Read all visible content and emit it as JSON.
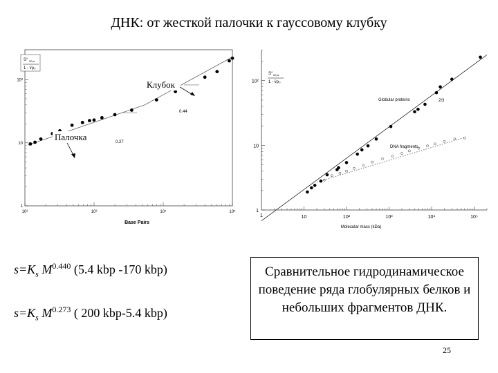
{
  "slide": {
    "title": "ДНК: от жесткой палочки к гауссовому клубку",
    "formula1": {
      "prefix": "s=K",
      "sub": "s",
      "mid": " M",
      "exp": "0.440",
      "range": " (5.4 kbp -170 kbp)"
    },
    "formula2": {
      "prefix": "s=K",
      "sub": "s",
      "mid": " M",
      "exp": "0.273",
      "range": "  ( 200 kbp-5.4 kbp)"
    },
    "caption": "Сравнительное гидродинамическое поведение ряда глобулярных белков и небольших фрагментов ДНК.",
    "page_number": "25"
  },
  "chart_data": [
    {
      "type": "scatter",
      "xlabel": "Base Pairs",
      "ylabel": "S°20,w / (1 - v̄ρ0)",
      "x_scale": "log",
      "y_scale": "log",
      "x_ticks": [
        "10²",
        "10³",
        "10⁴",
        "10⁵"
      ],
      "y_ticks": [
        "1",
        "10",
        "10²"
      ],
      "xlim": [
        100,
        100000
      ],
      "ylim": [
        1,
        300
      ],
      "annotations": [
        {
          "text": "Клубок",
          "target": "upper branch"
        },
        {
          "text": "Палочка",
          "target": "lower branch"
        },
        {
          "text": "0.44",
          "kind": "slope"
        },
        {
          "text": "0.27",
          "kind": "slope"
        }
      ],
      "series": [
        {
          "values": [
            [
              120,
              9.6
            ],
            [
              140,
              10.2
            ],
            [
              170,
              11.5
            ],
            [
              250,
              14
            ],
            [
              320,
              15.5
            ],
            [
              480,
              19
            ],
            [
              680,
              21
            ],
            [
              860,
              22.5
            ],
            [
              1000,
              23
            ],
            [
              1300,
              25
            ],
            [
              2000,
              28
            ],
            [
              3500,
              33
            ],
            [
              8000,
              48
            ],
            [
              15000,
              65
            ],
            [
              40000,
              110
            ],
            [
              60000,
              135
            ],
            [
              90000,
              200
            ],
            [
              100000,
              220
            ]
          ]
        }
      ]
    },
    {
      "type": "scatter",
      "xlabel": "Molecular mass (kDa)",
      "ylabel": "S°20,w / (1 - v̄ρ0)",
      "x_scale": "log",
      "y_scale": "log",
      "x_ticks": [
        "10",
        "10²",
        "10³",
        "10⁴",
        "10⁵"
      ],
      "x_origin_label": "1",
      "y_ticks": [
        "1",
        "10",
        "10²"
      ],
      "xlim": [
        1,
        200000
      ],
      "ylim": [
        1,
        300
      ],
      "legend": [
        "Globular proteins",
        "DNA fragments"
      ],
      "series": [
        {
          "name": "Globular proteins",
          "slope_label": "2/3",
          "values": [
            [
              12,
              1.9
            ],
            [
              15,
              2.2
            ],
            [
              18,
              2.4
            ],
            [
              25,
              2.8
            ],
            [
              35,
              3.5
            ],
            [
              60,
              4.2
            ],
            [
              65,
              4.5
            ],
            [
              100,
              5.4
            ],
            [
              180,
              7.3
            ],
            [
              230,
              8.5
            ],
            [
              320,
              9.8
            ],
            [
              500,
              12.5
            ],
            [
              1100,
              19.5
            ],
            [
              4000,
              33
            ],
            [
              4800,
              36
            ],
            [
              7000,
              43
            ],
            [
              13000,
              65
            ],
            [
              16000,
              80
            ],
            [
              30000,
              105
            ],
            [
              140000,
              230
            ]
          ]
        },
        {
          "name": "DNA fragments",
          "values": [
            [
              30,
              2.9
            ],
            [
              45,
              3.4
            ],
            [
              70,
              3.7
            ],
            [
              100,
              4.0
            ],
            [
              150,
              4.4
            ],
            [
              250,
              4.9
            ],
            [
              400,
              5.5
            ],
            [
              700,
              6.2
            ],
            [
              1200,
              6.8
            ],
            [
              2000,
              7.5
            ],
            [
              3000,
              8.2
            ],
            [
              5000,
              9.0
            ],
            [
              8000,
              9.8
            ],
            [
              12000,
              10.5
            ],
            [
              20000,
              11.5
            ],
            [
              35000,
              12.5
            ],
            [
              60000,
              13.0
            ]
          ]
        }
      ]
    }
  ]
}
